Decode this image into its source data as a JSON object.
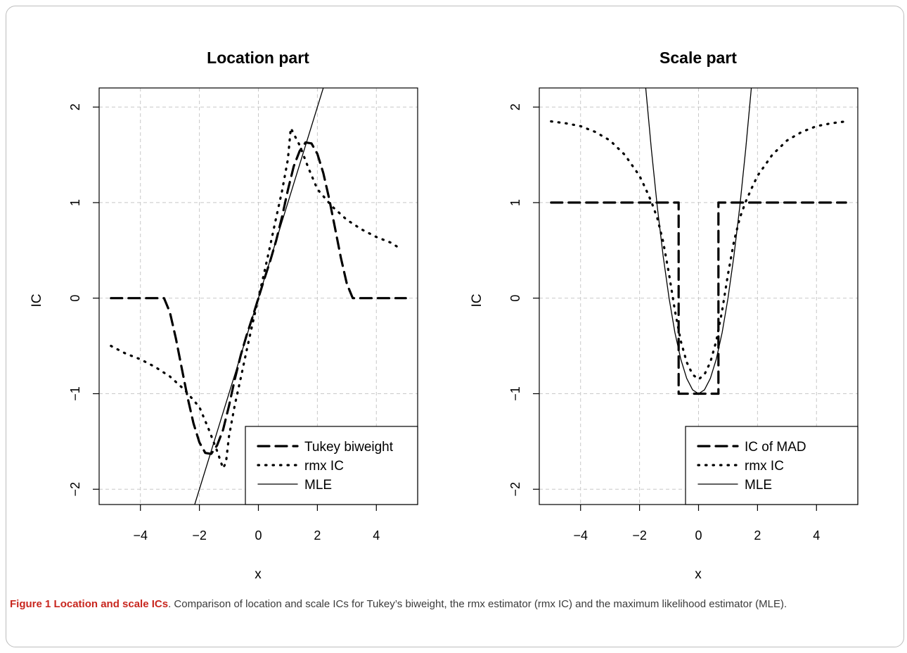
{
  "figure": {
    "caption_label": "Figure 1",
    "caption_title": "Location and scale ICs",
    "caption_text": ". Comparison of location and scale ICs for Tukey’s biweight, the rmx estimator (rmx IC) and the maximum likelihood estimator (MLE)."
  },
  "chart_data": [
    {
      "type": "line",
      "title": "Location part",
      "xlabel": "x",
      "ylabel": "IC",
      "xlim": [
        -5.4,
        5.4
      ],
      "ylim": [
        -2.16,
        2.2
      ],
      "xticks": [
        -4,
        -2,
        0,
        2,
        4
      ],
      "yticks": [
        -2,
        -1,
        0,
        1,
        2
      ],
      "grid": true,
      "legend_position": "bottom-right",
      "series": [
        {
          "name": "Tukey biweight",
          "style": "dashed",
          "x": [
            -5,
            -4.5,
            -4,
            -3.5,
            -3.2,
            -3,
            -2.8,
            -2.6,
            -2.4,
            -2.2,
            -2,
            -1.8,
            -1.6,
            -1.4,
            -1.2,
            -1,
            -0.8,
            -0.6,
            -0.4,
            -0.2,
            0,
            0.2,
            0.4,
            0.6,
            0.8,
            1,
            1.2,
            1.4,
            1.6,
            1.8,
            2,
            2.2,
            2.4,
            2.6,
            2.8,
            3,
            3.2,
            3.5,
            4,
            4.5,
            5
          ],
          "y": [
            0,
            0,
            0,
            0,
            0,
            -0.15,
            -0.42,
            -0.73,
            -1.04,
            -1.31,
            -1.51,
            -1.62,
            -1.63,
            -1.54,
            -1.38,
            -1.13,
            -0.85,
            -0.6,
            -0.39,
            -0.2,
            0,
            0.2,
            0.39,
            0.6,
            0.85,
            1.13,
            1.38,
            1.54,
            1.63,
            1.62,
            1.51,
            1.31,
            1.04,
            0.73,
            0.42,
            0.15,
            0,
            0,
            0,
            0,
            0
          ]
        },
        {
          "name": "rmx IC",
          "style": "dotted",
          "x": [
            -5,
            -4.5,
            -4,
            -3.5,
            -3,
            -2.5,
            -2,
            -1.7,
            -1.4,
            -1.2,
            -1.1,
            -1,
            -0.8,
            -0.6,
            -0.4,
            -0.2,
            0,
            0.2,
            0.4,
            0.6,
            0.8,
            1,
            1.1,
            1.2,
            1.4,
            1.7,
            2,
            2.5,
            3,
            3.5,
            4,
            4.5,
            4.8
          ],
          "y": [
            -0.5,
            -0.58,
            -0.64,
            -0.72,
            -0.82,
            -0.96,
            -1.14,
            -1.36,
            -1.6,
            -1.78,
            -1.72,
            -1.45,
            -1.12,
            -0.84,
            -0.55,
            -0.27,
            0,
            0.27,
            0.55,
            0.84,
            1.12,
            1.45,
            1.78,
            1.72,
            1.6,
            1.36,
            1.14,
            0.96,
            0.82,
            0.72,
            0.64,
            0.58,
            0.52
          ]
        },
        {
          "name": "MLE",
          "style": "solid",
          "x": [
            -2.16,
            2.2
          ],
          "y": [
            -2.16,
            2.2
          ]
        }
      ]
    },
    {
      "type": "line",
      "title": "Scale part",
      "xlabel": "x",
      "ylabel": "IC",
      "xlim": [
        -5.4,
        5.4
      ],
      "ylim": [
        -2.16,
        2.2
      ],
      "xticks": [
        -4,
        -2,
        0,
        2,
        4
      ],
      "yticks": [
        -2,
        -1,
        0,
        1,
        2
      ],
      "grid": true,
      "legend_position": "bottom-right",
      "series": [
        {
          "name": "IC of MAD",
          "style": "dashed",
          "x": [
            -5,
            -0.674,
            -0.674,
            0.674,
            0.674,
            5
          ],
          "y": [
            1,
            1,
            -1,
            -1,
            1,
            1
          ]
        },
        {
          "name": "rmx IC",
          "style": "dotted",
          "x": [
            -5,
            -4.5,
            -4,
            -3.5,
            -3,
            -2.5,
            -2,
            -1.8,
            -1.6,
            -1.4,
            -1.2,
            -1,
            -0.8,
            -0.6,
            -0.4,
            -0.2,
            0,
            0.2,
            0.4,
            0.6,
            0.8,
            1,
            1.2,
            1.4,
            1.6,
            1.8,
            2,
            2.5,
            3,
            3.5,
            4,
            4.5,
            5
          ],
          "y": [
            1.85,
            1.83,
            1.8,
            1.74,
            1.65,
            1.5,
            1.28,
            1.15,
            1.01,
            0.84,
            0.59,
            0.25,
            -0.13,
            -0.45,
            -0.67,
            -0.8,
            -0.85,
            -0.8,
            -0.67,
            -0.45,
            -0.13,
            0.25,
            0.59,
            0.84,
            1.01,
            1.15,
            1.28,
            1.5,
            1.65,
            1.74,
            1.8,
            1.83,
            1.85
          ]
        },
        {
          "name": "MLE",
          "style": "solid",
          "x": [
            -1.79,
            -1.6,
            -1.4,
            -1.2,
            -1,
            -0.8,
            -0.6,
            -0.4,
            -0.2,
            0,
            0.2,
            0.4,
            0.6,
            0.8,
            1,
            1.2,
            1.4,
            1.6,
            1.79
          ],
          "y": [
            2.2,
            1.56,
            0.96,
            0.44,
            0,
            -0.36,
            -0.64,
            -0.84,
            -0.96,
            -1,
            -0.96,
            -0.84,
            -0.64,
            -0.36,
            0,
            0.44,
            0.96,
            1.56,
            2.2
          ]
        }
      ]
    }
  ]
}
